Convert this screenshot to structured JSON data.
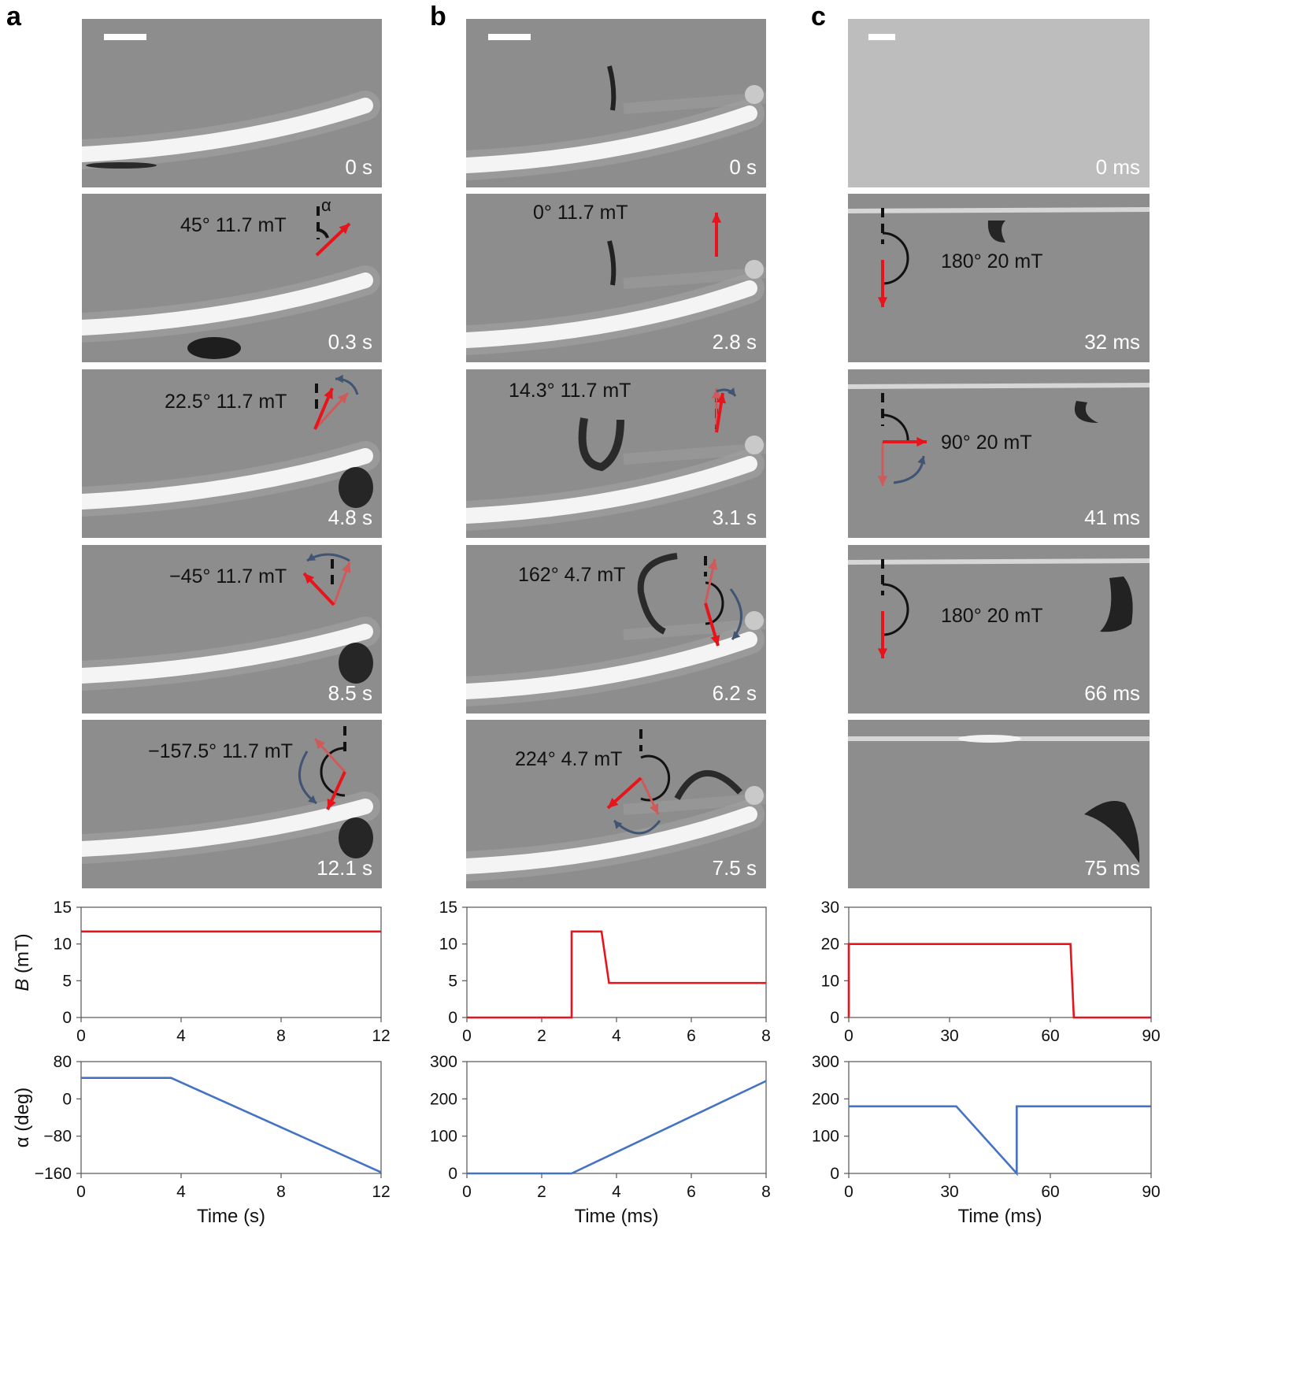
{
  "panels": [
    {
      "letter": "a",
      "time_labels": [
        "0 s",
        "0.3 s",
        "4.8 s",
        "8.5 s",
        "12.1 s"
      ],
      "field_labels": [
        "45° 11.7 mT",
        "22.5° 11.7 mT",
        "−45° 11.7 mT",
        "−157.5° 11.7 mT"
      ],
      "angle_symbol": "α"
    },
    {
      "letter": "b",
      "time_labels": [
        "0 s",
        "2.8 s",
        "3.1 s",
        "6.2 s",
        "7.5 s"
      ],
      "field_labels": [
        "0° 11.7 mT",
        "14.3° 11.7 mT",
        "162° 4.7 mT",
        "224° 4.7 mT"
      ]
    },
    {
      "letter": "c",
      "time_labels": [
        "0 ms",
        "32 ms",
        "41 ms",
        "66 ms",
        "75 ms"
      ],
      "field_labels": [
        "180° 20 mT",
        "90° 20 mT",
        "180° 20 mT"
      ]
    }
  ],
  "colors": {
    "field": "#e8141b",
    "field_faded": "#cf5a5a",
    "alpha": "#4472c4",
    "rotation": "#3f5573"
  },
  "chart_data": [
    {
      "type": "line",
      "panel": "a",
      "quantity": "B",
      "ylabel": "B (mT)",
      "xlim": [
        0,
        12
      ],
      "ylim": [
        0,
        15
      ],
      "xticks": [
        0,
        4,
        8,
        12
      ],
      "yticks": [
        0,
        5,
        10,
        15
      ],
      "series": [
        {
          "name": "B",
          "color": "#e8141b",
          "x": [
            0,
            12
          ],
          "y": [
            11.7,
            11.7
          ]
        }
      ]
    },
    {
      "type": "line",
      "panel": "a",
      "quantity": "alpha",
      "ylabel": "α (deg)",
      "xlabel": "Time (s)",
      "xlim": [
        0,
        12
      ],
      "ylim": [
        -160,
        80
      ],
      "xticks": [
        0,
        4,
        8,
        12
      ],
      "yticks": [
        -160,
        -80,
        0,
        80
      ],
      "series": [
        {
          "name": "alpha",
          "color": "#4472c4",
          "x": [
            0,
            3.6,
            12
          ],
          "y": [
            45,
            45,
            -157.5
          ]
        }
      ]
    },
    {
      "type": "line",
      "panel": "b",
      "quantity": "B",
      "xlim": [
        0,
        8
      ],
      "ylim": [
        0,
        15
      ],
      "xticks": [
        0,
        2,
        4,
        6,
        8
      ],
      "yticks": [
        0,
        5,
        10,
        15
      ],
      "series": [
        {
          "name": "B",
          "color": "#e8141b",
          "x": [
            0,
            2.8,
            2.8,
            3.6,
            3.8,
            8
          ],
          "y": [
            0,
            0,
            11.7,
            11.7,
            4.7,
            4.7
          ]
        }
      ]
    },
    {
      "type": "line",
      "panel": "b",
      "quantity": "alpha",
      "xlabel": "Time (ms)",
      "xlim": [
        0,
        8
      ],
      "ylim": [
        0,
        300
      ],
      "xticks": [
        0,
        2,
        4,
        6,
        8
      ],
      "yticks": [
        0,
        100,
        200,
        300
      ],
      "series": [
        {
          "name": "alpha",
          "color": "#4472c4",
          "x": [
            0,
            2.8,
            8
          ],
          "y": [
            0,
            0,
            248
          ]
        }
      ]
    },
    {
      "type": "line",
      "panel": "c",
      "quantity": "B",
      "xlim": [
        0,
        90
      ],
      "ylim": [
        0,
        30
      ],
      "xticks": [
        0,
        30,
        60,
        90
      ],
      "yticks": [
        0,
        10,
        20,
        30
      ],
      "series": [
        {
          "name": "B",
          "color": "#e8141b",
          "x": [
            0,
            0,
            66,
            67,
            90
          ],
          "y": [
            0,
            20,
            20,
            0,
            0
          ]
        }
      ]
    },
    {
      "type": "line",
      "panel": "c",
      "quantity": "alpha",
      "xlabel": "Time (ms)",
      "xlim": [
        0,
        90
      ],
      "ylim": [
        0,
        300
      ],
      "xticks": [
        0,
        30,
        60,
        90
      ],
      "yticks": [
        0,
        100,
        200,
        300
      ],
      "series": [
        {
          "name": "alpha",
          "color": "#4472c4",
          "x": [
            0,
            32,
            50,
            50,
            90
          ],
          "y": [
            180,
            180,
            0,
            180,
            180
          ]
        }
      ]
    }
  ]
}
